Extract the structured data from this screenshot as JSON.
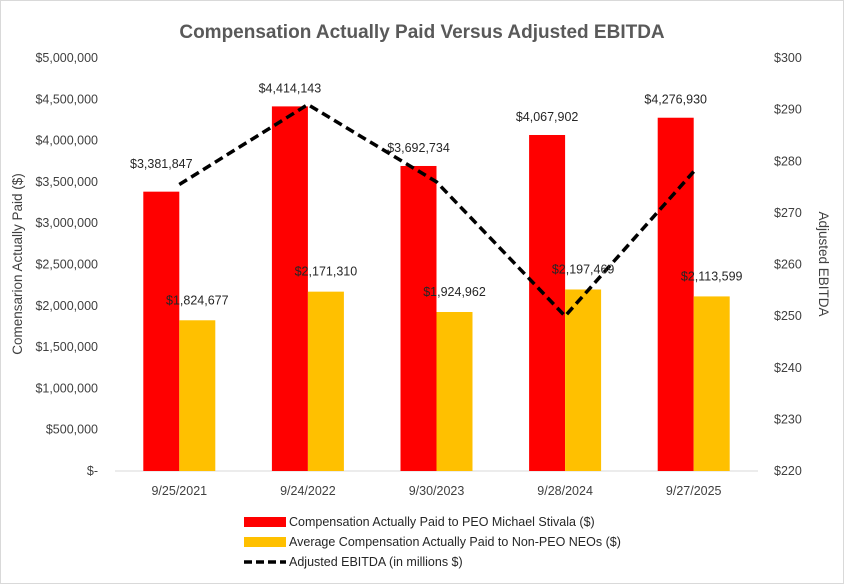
{
  "chart_data": {
    "type": "bar",
    "title": "Compensation Actually Paid Versus Adjusted EBITDA",
    "categories": [
      "9/25/2021",
      "9/24/2022",
      "9/30/2023",
      "9/28/2024",
      "9/27/2025"
    ],
    "series": [
      {
        "name": "Compensation Actually Paid to PEO Michael Stivala ($)",
        "kind": "bar",
        "color": "#ff0000",
        "values": [
          3381847,
          4414143,
          3692734,
          4067902,
          4276930
        ],
        "labels": [
          "$3,381,847",
          "$4,414,143",
          "$3,692,734",
          "$4,067,902",
          "$4,276,930"
        ]
      },
      {
        "name": "Average Compensation Actually Paid to Non-PEO NEOs ($)",
        "kind": "bar",
        "color": "#ffc000",
        "values": [
          1824677,
          2171310,
          1924962,
          2197469,
          2113599
        ],
        "labels": [
          "$1,824,677",
          "$2,171,310",
          "$1,924,962",
          "$2,197,469",
          "$2,113,599"
        ]
      },
      {
        "name": "Adjusted EBITDA (in millions $)",
        "kind": "line",
        "axis": "right",
        "color": "#000000",
        "dash": "dashed",
        "values": [
          275.5,
          291,
          276,
          250,
          278
        ]
      }
    ],
    "ylabel": "Comensarion Actually Paid ($)",
    "ylabel_right": "Adjusted EBITDA",
    "ylim": [
      0,
      5000000
    ],
    "ylim_right": [
      220,
      300
    ],
    "yticks": [
      "$-",
      "$500,000",
      "$1,000,000",
      "$1,500,000",
      "$2,000,000",
      "$2,500,000",
      "$3,000,000",
      "$3,500,000",
      "$4,000,000",
      "$4,500,000",
      "$5,000,000"
    ],
    "yticks_right": [
      "$220",
      "$230",
      "$240",
      "$250",
      "$260",
      "$270",
      "$280",
      "$290",
      "$300"
    ],
    "grid": false,
    "legend_position": "bottom"
  }
}
